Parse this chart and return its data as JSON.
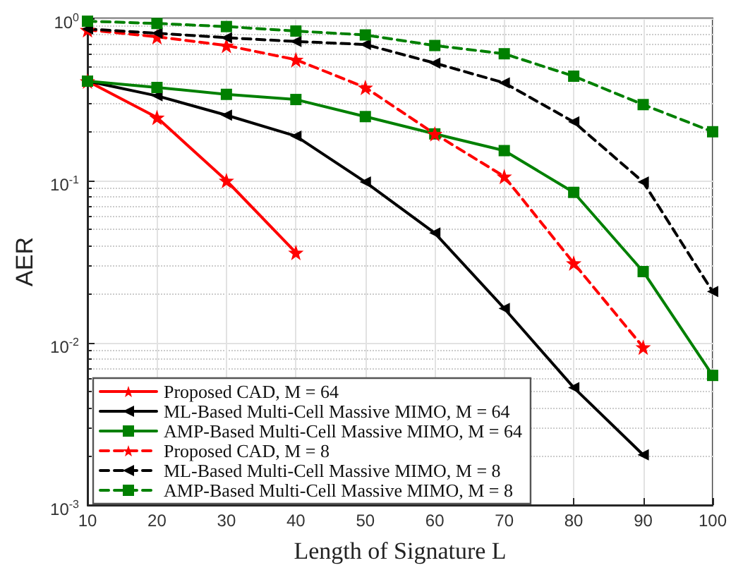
{
  "chart_data": {
    "type": "line",
    "xlabel": "Length of Signature L",
    "ylabel": "AER",
    "x": [
      10,
      20,
      30,
      40,
      50,
      60,
      70,
      80,
      90,
      100
    ],
    "xlim": [
      10,
      100
    ],
    "xticks": [
      10,
      20,
      30,
      40,
      50,
      60,
      70,
      80,
      90,
      100
    ],
    "log": "y",
    "ylim": [
      0.001,
      1
    ],
    "yticks": [
      {
        "value": 0.001,
        "label": "10$^{-3}$"
      },
      {
        "value": 0.01,
        "label": "10$^{-2}$"
      },
      {
        "value": 0.1,
        "label": "10$^{-1}$"
      },
      {
        "value": 1,
        "label": "10$^{0}$"
      }
    ],
    "grid": true,
    "legend": "bottom left",
    "series": [
      {
        "name": "Proposed CAD, M = 64",
        "color": "#ff0000",
        "marker": "star",
        "line_style": "solid",
        "values": [
          0.41,
          0.245,
          0.1,
          0.036,
          null,
          null,
          null,
          null,
          null,
          null
        ]
      },
      {
        "name": "ML-Based Multi-Cell Massive MIMO, M = 64",
        "color": "#000000",
        "marker": "triangle",
        "line_style": "solid",
        "values": [
          0.41,
          0.333,
          0.253,
          0.188,
          0.098,
          0.0475,
          0.0163,
          0.0053,
          0.00204,
          null
        ]
      },
      {
        "name": "AMP-Based Multi-Cell Massive MIMO, M = 64",
        "color": "#008000",
        "marker": "square",
        "line_style": "solid",
        "values": [
          0.41,
          0.375,
          0.34,
          0.316,
          0.248,
          0.194,
          0.153,
          0.0846,
          0.0275,
          0.0063
        ]
      },
      {
        "name": "Proposed CAD, M = 8",
        "color": "#ff0000",
        "marker": "star",
        "line_style": "dashed",
        "values": [
          0.85,
          0.77,
          0.68,
          0.556,
          0.375,
          0.194,
          0.106,
          0.031,
          0.0094,
          null
        ]
      },
      {
        "name": "ML-Based Multi-Cell Massive MIMO, M = 8",
        "color": "#000000",
        "marker": "triangle",
        "line_style": "dashed",
        "values": [
          0.86,
          0.81,
          0.76,
          0.72,
          0.69,
          0.53,
          0.4,
          0.23,
          0.098,
          0.0207
        ]
      },
      {
        "name": "AMP-Based Multi-Cell Massive MIMO, M = 8",
        "color": "#008000",
        "marker": "square",
        "line_style": "dashed",
        "values": [
          0.96,
          0.93,
          0.89,
          0.835,
          0.79,
          0.68,
          0.605,
          0.44,
          0.294,
          0.2
        ]
      }
    ]
  }
}
